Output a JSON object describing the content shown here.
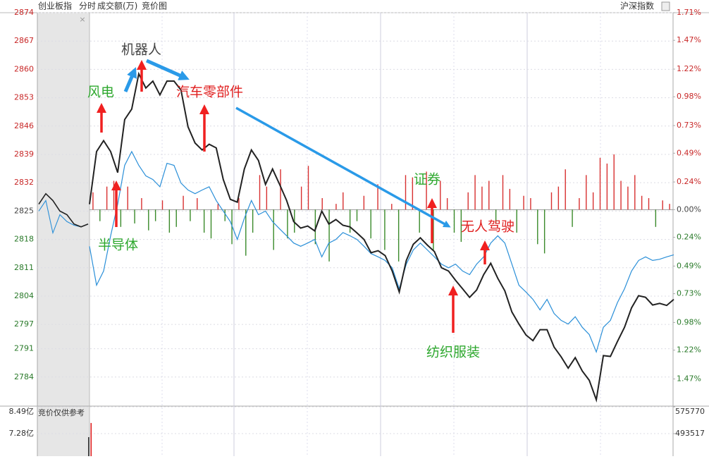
{
  "header": {
    "title": "创业板指",
    "tabs": [
      "分时",
      "成交额(万)",
      "竞价图"
    ],
    "right": "沪深指数",
    "close": "×"
  },
  "chart_data": [
    {
      "type": "line",
      "ylim": [
        2777,
        2874
      ],
      "yticks": [
        2874,
        2867,
        2860,
        2853,
        2846,
        2839,
        2832,
        2825,
        2818,
        2811,
        2804,
        2797,
        2791,
        2784
      ],
      "y2lim": [
        -1.7,
        1.71
      ],
      "y2ticks": [
        {
          "value": 1.71,
          "label": "1.71%"
        },
        {
          "value": 1.47,
          "label": "1.47%"
        },
        {
          "value": 1.22,
          "label": "1.22%"
        },
        {
          "value": 0.98,
          "label": "0.98%"
        },
        {
          "value": 0.73,
          "label": "0.73%"
        },
        {
          "value": 0.49,
          "label": "0.49%"
        },
        {
          "value": 0.24,
          "label": "0.24%"
        },
        {
          "value": 0,
          "label": "0.00%"
        },
        {
          "value": -0.24,
          "label": "0.24%"
        },
        {
          "value": -0.49,
          "label": "0.49%"
        },
        {
          "value": -0.73,
          "label": "0.73%"
        },
        {
          "value": -0.98,
          "label": "0.98%"
        },
        {
          "value": -1.22,
          "label": "1.22%"
        },
        {
          "value": -1.47,
          "label": "1.47%"
        }
      ],
      "grid": true,
      "series": [
        {
          "color": "#222222",
          "values": [
            2826.7,
            2839.7,
            2842.4,
            2839.7,
            2834.5,
            2847.6,
            2850.2,
            2858.9,
            2855.4,
            2857.1,
            2853.7,
            2857.1,
            2857.1,
            2854.9,
            2845.8,
            2841.8,
            2840.1,
            2841.5,
            2840.6,
            2832.8,
            2827.9,
            2827.2,
            2835.4,
            2840.1,
            2837.5,
            2831.6,
            2835.4,
            2831.6,
            2827.6,
            2822.4,
            2820.8,
            2821.3,
            2820.1,
            2825.0,
            2821.8,
            2822.9,
            2821.5,
            2821.1,
            2819.6,
            2818.0,
            2814.7,
            2815.2,
            2814.0,
            2810.2,
            2805.0,
            2812.8,
            2816.8,
            2818.4,
            2816.6,
            2815.0,
            2811.0,
            2810.2,
            2807.9,
            2805.8,
            2803.7,
            2805.5,
            2809.3,
            2812.1,
            2808.4,
            2805.3,
            2800.1,
            2797.1,
            2794.4,
            2793.0,
            2795.7,
            2795.7,
            2791.4,
            2789.0,
            2786.2,
            2788.8,
            2785.5,
            2783.2,
            2778.4,
            2789.3,
            2789.1,
            2792.8,
            2796.3,
            2801.1,
            2804.1,
            2803.7,
            2801.8,
            2802.2,
            2801.7,
            2803.2
          ]
        },
        {
          "color": "#2a8fd8",
          "values": [
            2816.3,
            2806.7,
            2810.2,
            2818.9,
            2826.7,
            2836.3,
            2839.7,
            2836.3,
            2833.7,
            2832.8,
            2831.0,
            2836.8,
            2836.3,
            2831.9,
            2830.2,
            2829.3,
            2830.2,
            2831.0,
            2827.6,
            2825.0,
            2822.4,
            2818.0,
            2823.2,
            2827.6,
            2824.1,
            2825.0,
            2822.4,
            2820.6,
            2818.9,
            2817.1,
            2816.3,
            2817.1,
            2818.0,
            2813.7,
            2817.1,
            2818.0,
            2819.7,
            2818.9,
            2818.0,
            2816.3,
            2814.5,
            2813.7,
            2812.8,
            2811.0,
            2805.8,
            2811.9,
            2815.4,
            2817.1,
            2815.4,
            2813.7,
            2811.9,
            2811.0,
            2811.9,
            2810.2,
            2809.3,
            2811.9,
            2813.7,
            2817.1,
            2818.9,
            2817.1,
            2811.9,
            2806.7,
            2805.0,
            2803.2,
            2800.6,
            2803.2,
            2799.7,
            2798.0,
            2797.1,
            2798.9,
            2796.3,
            2794.5,
            2790.2,
            2796.3,
            2798.0,
            2802.4,
            2805.8,
            2810.2,
            2812.8,
            2813.7,
            2812.8,
            2813.1,
            2813.7,
            2814.2
          ]
        }
      ],
      "auction_series": [
        {
          "color": "#222222",
          "values": [
            2826.7,
            2829.3,
            2827.6,
            2825.0,
            2824.1,
            2821.8,
            2821.1,
            2821.8
          ]
        },
        {
          "color": "#2a8fd8",
          "values": [
            2825.0,
            2827.6,
            2819.6,
            2824.1,
            2822.4,
            2821.5,
            2821.1,
            2821.8
          ]
        }
      ],
      "bars": {
        "up_color": "#d83030",
        "down_color": "#3a8a2a",
        "values": [
          0.15,
          -0.1,
          0.2,
          0.25,
          -0.15,
          0.2,
          -0.12,
          0.1,
          -0.18,
          -0.1,
          0.08,
          -0.2,
          -0.15,
          0.12,
          -0.1,
          0.1,
          -0.2,
          -0.25,
          0.05,
          -0.1,
          -0.3,
          0.1,
          -0.4,
          -0.2,
          0.3,
          0.2,
          -0.35,
          0.35,
          -0.25,
          -0.2,
          0.2,
          0.38,
          -0.3,
          0.1,
          -0.45,
          0.05,
          0.15,
          -0.2,
          -0.1,
          0.12,
          -0.25,
          0.22,
          -0.35,
          0.05,
          -0.45,
          0.3,
          0.28,
          -0.2,
          0.33,
          -0.35,
          0.25,
          0.1,
          -0.2,
          -0.28,
          0.15,
          0.3,
          0.2,
          0.25,
          -0.12,
          0.3,
          0.18,
          -0.2,
          0.12,
          0.1,
          -0.3,
          -0.38,
          0.15,
          0.2,
          0.35,
          -0.15,
          0.1,
          0.3,
          0.15,
          0.45,
          0.4,
          0.48,
          0.25,
          0.2,
          0.3,
          0.12,
          0.1,
          -0.15,
          0.08,
          0.05
        ]
      },
      "annotations": [
        {
          "text": "机器人",
          "color": "#444444"
        },
        {
          "text": "风电",
          "color": "#2ea82e"
        },
        {
          "text": "汽车零部件",
          "color": "#e02020"
        },
        {
          "text": "半导体",
          "color": "#2ea82e"
        },
        {
          "text": "证券",
          "color": "#2ea82e"
        },
        {
          "text": "无人驾驶",
          "color": "#e02020"
        },
        {
          "text": "纺织服装",
          "color": "#2ea82e"
        }
      ]
    },
    {
      "type": "bar",
      "label": "竞价仅供参考",
      "ylim": [
        6.26,
        8.49
      ],
      "yticks": [
        {
          "value": 8.49,
          "label": "8.49亿"
        },
        {
          "value": 7.28,
          "label": "7.28亿"
        }
      ],
      "y2lim": [
        424247,
        575770
      ],
      "y2ticks": [
        575770,
        493517
      ],
      "values": [
        7.12,
        7.76
      ],
      "colors": [
        "#333333",
        "#e02020"
      ]
    }
  ]
}
